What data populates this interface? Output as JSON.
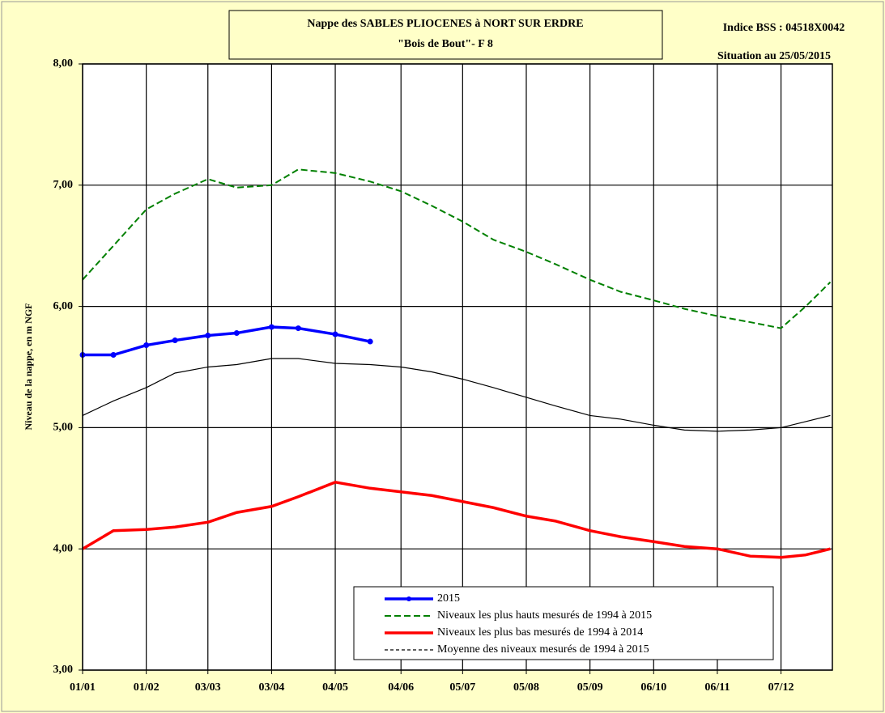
{
  "chart_data": {
    "type": "line",
    "title": "Nappe des SABLES PLIOCENES à NORT SUR ERDRE",
    "subtitle": "\"Bois de Bout\"-  F 8",
    "annotations": [
      "Indice BSS : 04518X0042",
      "Situation au 25/05/2015"
    ],
    "y_label": "Niveau de la nappe, en m NGF",
    "x": [
      0,
      15,
      31,
      45,
      61,
      75,
      92,
      105,
      123,
      140,
      155,
      170,
      185,
      200,
      216,
      230,
      247,
      262,
      278,
      293,
      309,
      325,
      340,
      352,
      364
    ],
    "xlim": [
      0,
      365
    ],
    "xticks": [
      {
        "value": 0,
        "label": "01/01"
      },
      {
        "value": 31,
        "label": "01/02"
      },
      {
        "value": 61,
        "label": "03/03"
      },
      {
        "value": 92,
        "label": "03/04"
      },
      {
        "value": 123,
        "label": "04/05"
      },
      {
        "value": 155,
        "label": "04/06"
      },
      {
        "value": 185,
        "label": "05/07"
      },
      {
        "value": 216,
        "label": "05/08"
      },
      {
        "value": 247,
        "label": "05/09"
      },
      {
        "value": 278,
        "label": "06/10"
      },
      {
        "value": 309,
        "label": "06/11"
      },
      {
        "value": 340,
        "label": "07/12"
      }
    ],
    "ylim": [
      3,
      8
    ],
    "yticks": [
      {
        "value": 3,
        "label": "3,00"
      },
      {
        "value": 4,
        "label": "4,00"
      },
      {
        "value": 5,
        "label": "5,00"
      },
      {
        "value": 6,
        "label": "6,00"
      },
      {
        "value": 7,
        "label": "7,00"
      },
      {
        "value": 8,
        "label": "8,00"
      }
    ],
    "grid": true,
    "series": [
      {
        "name": "2015",
        "color": "#0000ff",
        "style": "solid-markers",
        "values": [
          5.6,
          5.6,
          5.68,
          5.72,
          5.76,
          5.78,
          5.83,
          5.82,
          5.77,
          5.71,
          null,
          null,
          null,
          null,
          null,
          null,
          null,
          null,
          null,
          null,
          null,
          null,
          null,
          null,
          null
        ]
      },
      {
        "name": "Niveaux les plus hauts mesurés de 1994 à 2015",
        "color": "#008000",
        "style": "dashed",
        "values": [
          6.22,
          6.5,
          6.8,
          6.93,
          7.05,
          6.98,
          7.0,
          7.13,
          7.1,
          7.03,
          6.95,
          6.83,
          6.7,
          6.55,
          6.45,
          6.35,
          6.22,
          6.12,
          6.05,
          5.98,
          5.92,
          5.87,
          5.82,
          6.0,
          6.2
        ]
      },
      {
        "name": "Niveaux les plus bas mesurés de 1994 à 2014",
        "color": "#ff0000",
        "style": "thick",
        "values": [
          4.0,
          4.15,
          4.16,
          4.18,
          4.22,
          4.3,
          4.35,
          4.43,
          4.55,
          4.5,
          4.47,
          4.44,
          4.39,
          4.34,
          4.27,
          4.23,
          4.15,
          4.1,
          4.06,
          4.02,
          4.0,
          3.94,
          3.93,
          3.95,
          4.0
        ]
      },
      {
        "name": "Moyenne des niveaux mesurés de 1994 à 2015",
        "color": "#000000",
        "style": "thin",
        "values": [
          5.1,
          5.22,
          5.33,
          5.45,
          5.5,
          5.52,
          5.57,
          5.57,
          5.53,
          5.52,
          5.5,
          5.46,
          5.4,
          5.33,
          5.25,
          5.18,
          5.1,
          5.07,
          5.02,
          4.98,
          4.97,
          4.98,
          5.0,
          5.05,
          5.1
        ]
      }
    ]
  }
}
